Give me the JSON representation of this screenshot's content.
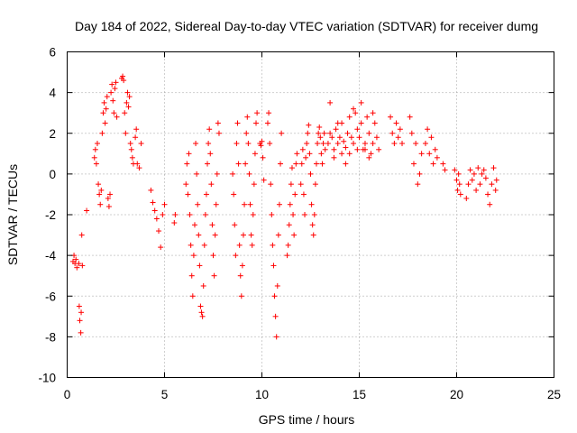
{
  "chart_data": {
    "type": "scatter",
    "title": "Day 184 of 2022, Sidereal Day-to-day VTEC variation (SDTVAR) for receiver dumg",
    "xlabel": "GPS time / hours",
    "ylabel": "SDTVAR / TECUs",
    "xlim": [
      0,
      25
    ],
    "ylim": [
      -10,
      6
    ],
    "x_ticks": [
      0,
      5,
      10,
      15,
      20,
      25
    ],
    "y_ticks": [
      -10,
      -8,
      -6,
      -4,
      -2,
      0,
      2,
      4,
      6
    ],
    "x_tick_labels": [
      "0",
      "5",
      "10",
      "15",
      "20",
      "25"
    ],
    "y_tick_labels": [
      "-10",
      "-8",
      "-6",
      "-4",
      "-2",
      "0",
      "2",
      "4",
      "6"
    ],
    "grid": true,
    "marker": "+",
    "color": "#ff0000",
    "series": [
      {
        "name": "SDTVAR",
        "x": [
          0.3,
          0.35,
          0.4,
          0.45,
          0.5,
          0.6,
          0.62,
          0.65,
          0.7,
          0.72,
          0.75,
          0.78,
          1.0,
          1.4,
          1.45,
          1.5,
          1.55,
          1.6,
          1.65,
          1.7,
          1.75,
          1.8,
          1.85,
          1.9,
          1.95,
          2.0,
          2.05,
          2.1,
          2.15,
          2.2,
          2.25,
          2.3,
          2.35,
          2.4,
          2.45,
          2.5,
          2.55,
          2.8,
          2.85,
          2.9,
          2.95,
          3.0,
          3.05,
          3.1,
          3.15,
          3.2,
          3.25,
          3.3,
          3.35,
          3.4,
          3.5,
          3.55,
          3.6,
          3.7,
          3.8,
          4.3,
          4.4,
          4.5,
          4.6,
          4.7,
          4.8,
          4.9,
          5.0,
          5.5,
          5.55,
          6.1,
          6.15,
          6.2,
          6.25,
          6.3,
          6.35,
          6.4,
          6.45,
          6.5,
          6.55,
          6.6,
          6.65,
          6.7,
          6.75,
          6.8,
          6.85,
          6.9,
          6.95,
          7.0,
          7.05,
          7.1,
          7.15,
          7.2,
          7.25,
          7.3,
          7.35,
          7.4,
          7.45,
          7.5,
          7.55,
          7.6,
          7.65,
          7.7,
          7.75,
          7.8,
          8.5,
          8.55,
          8.6,
          8.65,
          8.7,
          8.75,
          8.8,
          8.85,
          8.9,
          8.95,
          9.0,
          9.05,
          9.1,
          9.15,
          9.2,
          9.25,
          9.3,
          9.35,
          9.4,
          9.45,
          9.5,
          9.55,
          9.6,
          9.65,
          9.7,
          9.75,
          9.9,
          9.95,
          10.0,
          10.05,
          10.1,
          10.3,
          10.35,
          10.4,
          10.45,
          10.5,
          10.55,
          10.6,
          10.65,
          10.7,
          10.75,
          10.8,
          10.85,
          10.9,
          10.95,
          11.0,
          11.3,
          11.35,
          11.4,
          11.45,
          11.5,
          11.55,
          11.6,
          11.65,
          11.7,
          11.75,
          11.8,
          12.0,
          12.05,
          12.1,
          12.15,
          12.2,
          12.25,
          12.3,
          12.35,
          12.4,
          12.45,
          12.5,
          12.55,
          12.6,
          12.65,
          12.7,
          12.75,
          12.8,
          12.85,
          12.9,
          12.95,
          13.0,
          13.05,
          13.1,
          13.15,
          13.2,
          13.25,
          13.4,
          13.5,
          13.6,
          13.7,
          13.8,
          13.9,
          14.0,
          14.1,
          14.2,
          14.3,
          14.4,
          14.5,
          14.6,
          14.7,
          14.8,
          14.9,
          15.0,
          15.1,
          15.2,
          15.3,
          15.4,
          15.5,
          15.6,
          15.7,
          15.8,
          15.9,
          16.0,
          13.5,
          13.7,
          13.9,
          14.1,
          14.3,
          14.5,
          14.7,
          14.9,
          15.1,
          15.3,
          15.5,
          15.7,
          16.6,
          16.7,
          16.8,
          16.9,
          17.0,
          17.1,
          17.2,
          17.6,
          17.7,
          17.8,
          17.9,
          18.0,
          18.1,
          18.2,
          18.4,
          18.5,
          18.6,
          18.7,
          18.8,
          18.9,
          19.0,
          19.3,
          19.4,
          19.9,
          20.0,
          20.05,
          20.1,
          20.15,
          20.2,
          20.5,
          20.6,
          20.7,
          20.8,
          20.9,
          21.0,
          21.1,
          21.2,
          21.3,
          21.4,
          21.5,
          21.6,
          21.7,
          21.8,
          21.9,
          22.0,
          22.05
        ],
        "y": [
          -4.3,
          -4.0,
          -4.4,
          -4.2,
          -4.6,
          -4.4,
          -6.5,
          -7.2,
          -7.8,
          -6.8,
          -3.0,
          -4.5,
          -1.8,
          0.8,
          1.2,
          0.5,
          1.5,
          -0.5,
          -1.0,
          -1.5,
          -0.8,
          2.0,
          3.0,
          3.5,
          2.5,
          3.2,
          3.8,
          -1.2,
          -1.6,
          -1.0,
          4.0,
          4.4,
          3.6,
          3.0,
          4.2,
          4.5,
          2.8,
          4.7,
          4.8,
          4.6,
          3.0,
          2.0,
          3.5,
          4.0,
          3.3,
          3.8,
          1.5,
          1.2,
          0.8,
          0.5,
          1.8,
          2.2,
          0.5,
          0.3,
          1.5,
          -0.8,
          -1.4,
          -1.8,
          -2.2,
          -2.8,
          -3.6,
          -2.0,
          -1.5,
          -2.4,
          -2.0,
          -0.5,
          0.5,
          -1.0,
          1.0,
          -2.0,
          -3.5,
          -5.0,
          -6.0,
          -4.0,
          -2.5,
          1.5,
          0.0,
          -1.5,
          -3.0,
          -4.5,
          -6.5,
          -6.8,
          -7.0,
          -5.5,
          -3.5,
          -2.0,
          -1.0,
          0.5,
          1.5,
          2.2,
          1.0,
          -0.5,
          -2.5,
          -4.0,
          -5.0,
          -3.0,
          -1.5,
          0.0,
          2.5,
          2.0,
          0.0,
          -1.0,
          -2.5,
          -4.0,
          1.5,
          2.5,
          0.5,
          -3.5,
          -5.0,
          -6.0,
          -4.5,
          -3.0,
          -1.5,
          0.5,
          2.0,
          2.8,
          1.5,
          0.0,
          -1.5,
          -3.0,
          -3.5,
          -2.0,
          -0.5,
          1.0,
          2.5,
          3.0,
          1.5,
          1.4,
          1.6,
          0.8,
          -0.3,
          2.5,
          3.0,
          1.5,
          -0.5,
          -2.0,
          -3.5,
          -4.5,
          -6.0,
          -7.0,
          -8.0,
          -5.5,
          -3.0,
          -1.5,
          0.5,
          2.0,
          -4.0,
          -3.5,
          -2.5,
          -1.5,
          -0.5,
          0.3,
          -2.0,
          -3.0,
          -1.0,
          0.5,
          1.0,
          -0.5,
          0.5,
          1.2,
          -1.0,
          -2.0,
          0.8,
          1.5,
          2.0,
          2.4,
          1.0,
          0.0,
          -1.5,
          -2.5,
          -3.0,
          -2.0,
          -0.5,
          0.5,
          1.5,
          2.0,
          2.3,
          1.8,
          1.0,
          0.5,
          1.5,
          2.0,
          1.2,
          1.5,
          2.0,
          1.8,
          1.2,
          2.2,
          1.5,
          1.8,
          2.5,
          1.6,
          1.3,
          2.0,
          2.8,
          1.8,
          1.5,
          3.0,
          2.2,
          1.8,
          2.5,
          1.2,
          1.5,
          2.8,
          2.0,
          1.0,
          1.5,
          2.5,
          1.8,
          1.2,
          3.5,
          0.8,
          2.5,
          1.0,
          0.5,
          1.0,
          3.2,
          1.2,
          3.5,
          1.2,
          0.8,
          3.0,
          2.8,
          2.0,
          1.5,
          2.5,
          1.8,
          2.2,
          1.5,
          2.8,
          2.0,
          0.5,
          1.5,
          -0.5,
          0.0,
          1.0,
          1.5,
          2.2,
          1.0,
          1.8,
          0.5,
          1.2,
          0.8,
          0.5,
          0.2,
          0.2,
          -0.3,
          -0.8,
          0.0,
          -0.5,
          -1.0,
          -1.2,
          -0.5,
          0.2,
          -0.3,
          0.0,
          -0.8,
          0.3,
          -0.5,
          0.0,
          0.2,
          -0.2,
          -1.0,
          -1.5,
          -0.5,
          0.3,
          -0.8,
          -0.3
        ]
      }
    ]
  }
}
